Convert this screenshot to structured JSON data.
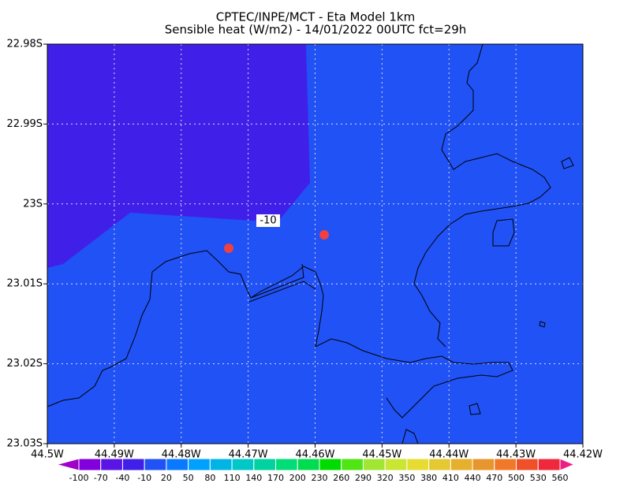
{
  "title": "CPTEC/INPE/MCT -  Eta Model 1km",
  "subtitle": "Sensible heat (W/m2) - 14/01/2022 00UTC fct=29h",
  "xlim": [
    -44.5,
    -44.42
  ],
  "ylim": [
    -23.03,
    -22.98
  ],
  "xticks": [
    {
      "value": -44.5,
      "label": "44.5W"
    },
    {
      "value": -44.49,
      "label": "44.49W"
    },
    {
      "value": -44.48,
      "label": "44.48W"
    },
    {
      "value": -44.47,
      "label": "44.47W"
    },
    {
      "value": -44.46,
      "label": "44.46W"
    },
    {
      "value": -44.45,
      "label": "44.45W"
    },
    {
      "value": -44.44,
      "label": "44.44W"
    },
    {
      "value": -44.43,
      "label": "44.43W"
    },
    {
      "value": -44.42,
      "label": "44.42W"
    }
  ],
  "yticks": [
    {
      "value": -22.98,
      "label": "22.98S"
    },
    {
      "value": -22.99,
      "label": "22.99S"
    },
    {
      "value": -23,
      "label": "23S"
    },
    {
      "value": -23.01,
      "label": "23.01S"
    },
    {
      "value": -23.02,
      "label": "23.02S"
    },
    {
      "value": -23.03,
      "label": "23.03S"
    }
  ],
  "grid": true,
  "contour_label": "-10",
  "colorbar": {
    "levels": [
      -100,
      -70,
      -40,
      -10,
      20,
      50,
      80,
      110,
      140,
      170,
      200,
      230,
      260,
      290,
      320,
      350,
      380,
      410,
      440,
      470,
      500,
      530,
      560
    ],
    "colors": [
      "#a000c8",
      "#8200dc",
      "#5a14e6",
      "#4020e8",
      "#2152f5",
      "#0a78ff",
      "#00a0ff",
      "#00b4e6",
      "#00c8c8",
      "#00d2a0",
      "#00dc78",
      "#00dc50",
      "#00dc00",
      "#50e614",
      "#a0e632",
      "#c8e632",
      "#e6dc32",
      "#e6c832",
      "#e6af2d",
      "#e6962d",
      "#f07828",
      "#f05028",
      "#f0283c",
      "#f01e82"
    ]
  }
}
